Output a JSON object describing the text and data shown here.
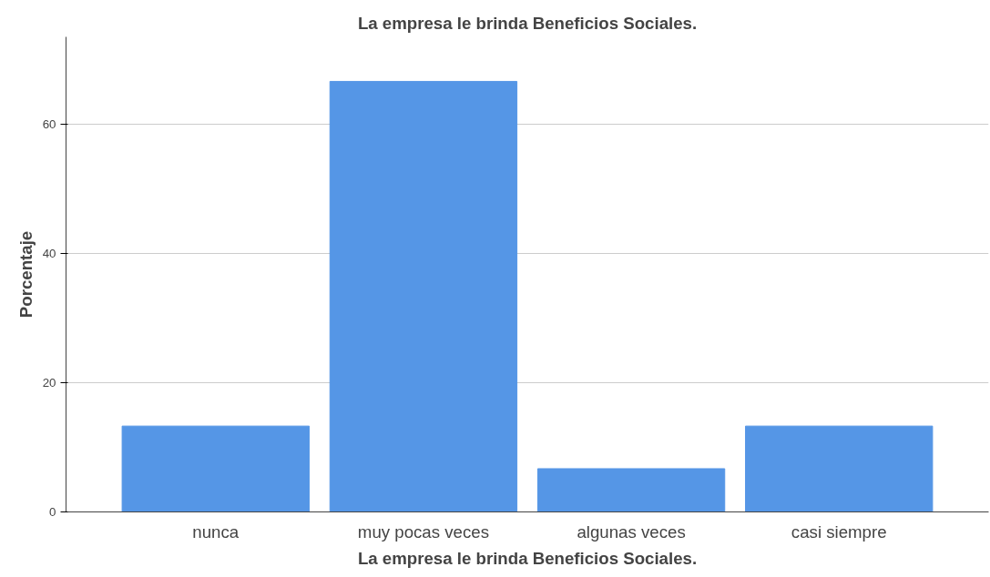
{
  "chart_data": {
    "type": "bar",
    "title": "La empresa le brinda Beneficios Sociales.",
    "xlabel": "La empresa le brinda Beneficios Sociales.",
    "ylabel": "Porcentaje",
    "categories": [
      "nunca",
      "muy pocas veces",
      "algunas veces",
      "casi siempre"
    ],
    "values": [
      13.3,
      66.7,
      6.7,
      13.3
    ],
    "color": "#5596e6",
    "ylim": [
      0,
      73.6
    ],
    "yticks": [
      0,
      20,
      40,
      60
    ],
    "grid": "y"
  }
}
